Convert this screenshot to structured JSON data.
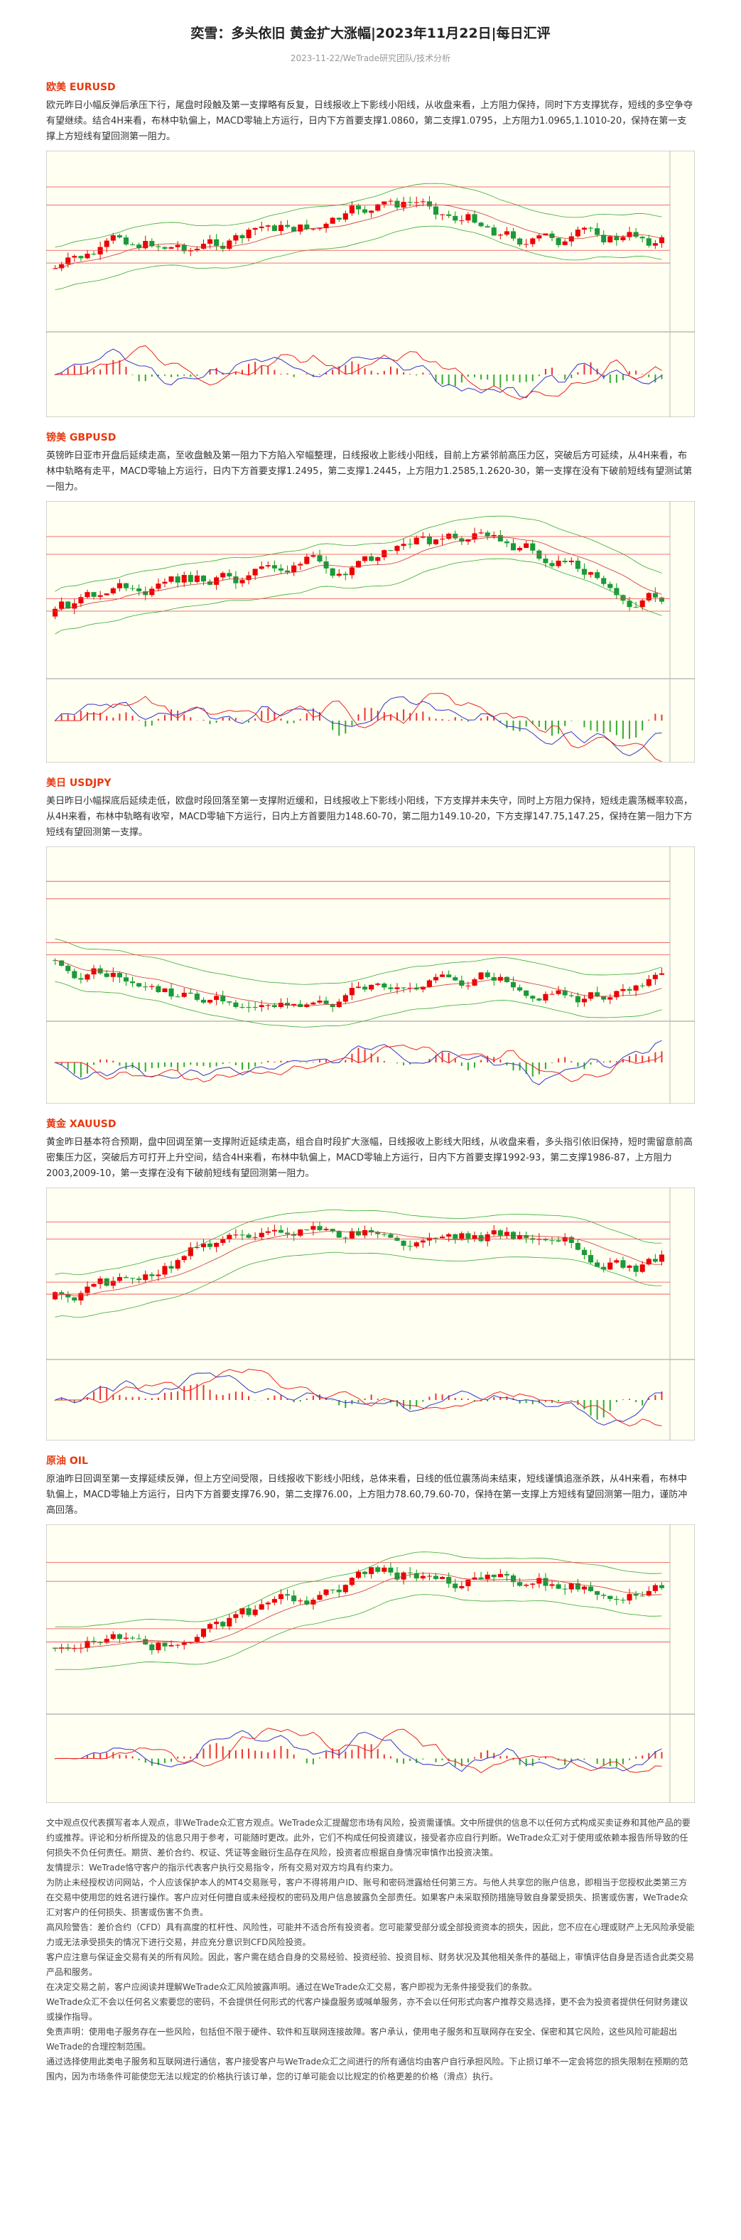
{
  "header": {
    "title": "奕雪：多头依旧 黄金扩大涨幅|2023年11月22日|每日汇评",
    "subtitle": "2023-11-22/WeTrade研究团队/技术分析"
  },
  "sections": [
    {
      "heading": "欧美 EURUSD",
      "body": "欧元昨日小幅反弹后承压下行，尾盘时段触及第一支撑略有反复，日线报收上下影线小阳线，从收盘来看，上方阻力保持，同时下方支撑犹存，短线的多空争夺有望继续。结合4H来看，布林中轨偏上，MACD零轴上方运行，日内下方首要支撑1.0860，第二支撑1.0795，上方阻力1.0965,1.1010-20，保持在第一支撑上方短线有望回测第一阻力。"
    },
    {
      "heading": "镑美 GBPUSD",
      "body": "英镑昨日亚市开盘后延续走高，至收盘触及第一阻力下方陷入窄幅整理，日线报收上影线小阳线，目前上方紧邻前高压力区，突破后方可延续，从4H来看，布林中轨略有走平，MACD零轴上方运行，日内下方首要支撑1.2495，第二支撑1.2445，上方阻力1.2585,1.2620-30，第一支撑在没有下破前短线有望测试第一阻力。"
    },
    {
      "heading": "美日 USDJPY",
      "body": "美日昨日小幅探底后延续走低，欧盘时段回落至第一支撑附近缓和，日线报收上下影线小阳线，下方支撑并未失守，同时上方阻力保持，短线走震荡概率较高，从4H来看，布林中轨略有收窄，MACD零轴下方运行，日内上方首要阻力148.60-70，第二阻力149.10-20，下方支撑147.75,147.25，保持在第一阻力下方短线有望回测第一支撑。"
    },
    {
      "heading": "黄金 XAUUSD",
      "body": "黄金昨日基本符合预期，盘中回调至第一支撑附近延续走高，组合自时段扩大涨幅，日线报收上影线大阳线，从收盘来看，多头指引依旧保持，短时需留意前高密集压力区，突破后方可打开上升空间，结合4H来看，布林中轨偏上，MACD零轴上方运行，日内下方首要支撑1992-93，第二支撑1986-87，上方阻力2003,2009-10，第一支撑在没有下破前短线有望回测第一阻力。"
    },
    {
      "heading": "原油 OIL",
      "body": "原油昨日回调至第一支撑延续反弹，但上方空间受限，日线报收下影线小阳线，总体来看，日线的低位震荡尚未结束，短线谨慎追涨杀跌，从4H来看，布林中轨偏上，MACD零轴上方运行，日内下方首要支撑76.90，第二支撑76.00，上方阻力78.60,79.60-70，保持在第一支撑上方短线有望回测第一阻力，谨防冲高回落。"
    }
  ],
  "disclaimer": [
    "文中观点仅代表撰写者本人观点，非WeTrade众汇官方观点。WeTrade众汇提醒您市场有风险，投资需谨慎。文中所提供的信息不以任何方式构成买卖证券和其他产品的要约或推荐。评论和分析所提及的信息只用于参考，可能随时更改。此外，它们不构成任何投资建议，接受者亦应自行判断。WeTrade众汇对于使用或依赖本报告所导致的任何损失不负任何责任。期货、差价合约、权证、凭证等金融衍生品存在风险，投资者应根据自身情况审慎作出投资决策。",
    "友情提示：WeTrade恪守客户的指示代表客户执行交易指令，所有交易对双方均具有约束力。",
    "为防止未经授权访问网站，个人应该保护本人的MT4交易账号，客户不得将用户ID、账号和密码泄露给任何第三方。与他人共享您的账户信息，即相当于您授权此类第三方在交易中使用您的姓名进行操作。客户应对任何擅自或未经授权的密码及用户信息披露负全部责任。如果客户未采取预防措施导致自身蒙受损失、损害或伤害，WeTrade众汇对客户的任何损失、损害或伤害不负责。",
    "高风险警告：差价合约（CFD）具有高度的杠杆性、风险性，可能并不适合所有投资者。您可能蒙受部分或全部投资资本的损失，因此，您不应在心理或财产上无风险承受能力或无法承受损失的情况下进行交易，并应充分意识到CFD风险投资。",
    "客户应注意与保证金交易有关的所有风险。因此，客户需在结合自身的交易经验、投资经验、投资目标、财务状况及其他相关条件的基础上，审慎评估自身是否适合此类交易产品和服务。",
    "在决定交易之前，客户应阅读并理解WeTrade众汇风险披露声明。通过在WeTrade众汇交易，客户即视为无条件接受我们的条款。",
    "WeTrade众汇不会以任何名义索要您的密码，不会提供任何形式的代客户操盘服务或喊单服务，亦不会以任何形式向客户推荐交易选择，更不会为投资者提供任何财务建议或操作指导。",
    "免责声明：使用电子服务存在一些风险，包括但不限于硬件、软件和互联网连接故障。客户承认，使用电子服务和互联网存在安全、保密和其它风险，这些风险可能超出WeTrade的合理控制范围。",
    "通过选择使用此类电子服务和互联网进行通信，客户接受客户与WeTrade众汇之间进行的所有通信均由客户自行承担风险。下止损订单不一定会将您的损失限制在预期的范围内，因为市场条件可能使您无法以规定的价格执行该订单，您的订单可能会以比规定的价格更差的价格（滑点）执行。"
  ]
}
